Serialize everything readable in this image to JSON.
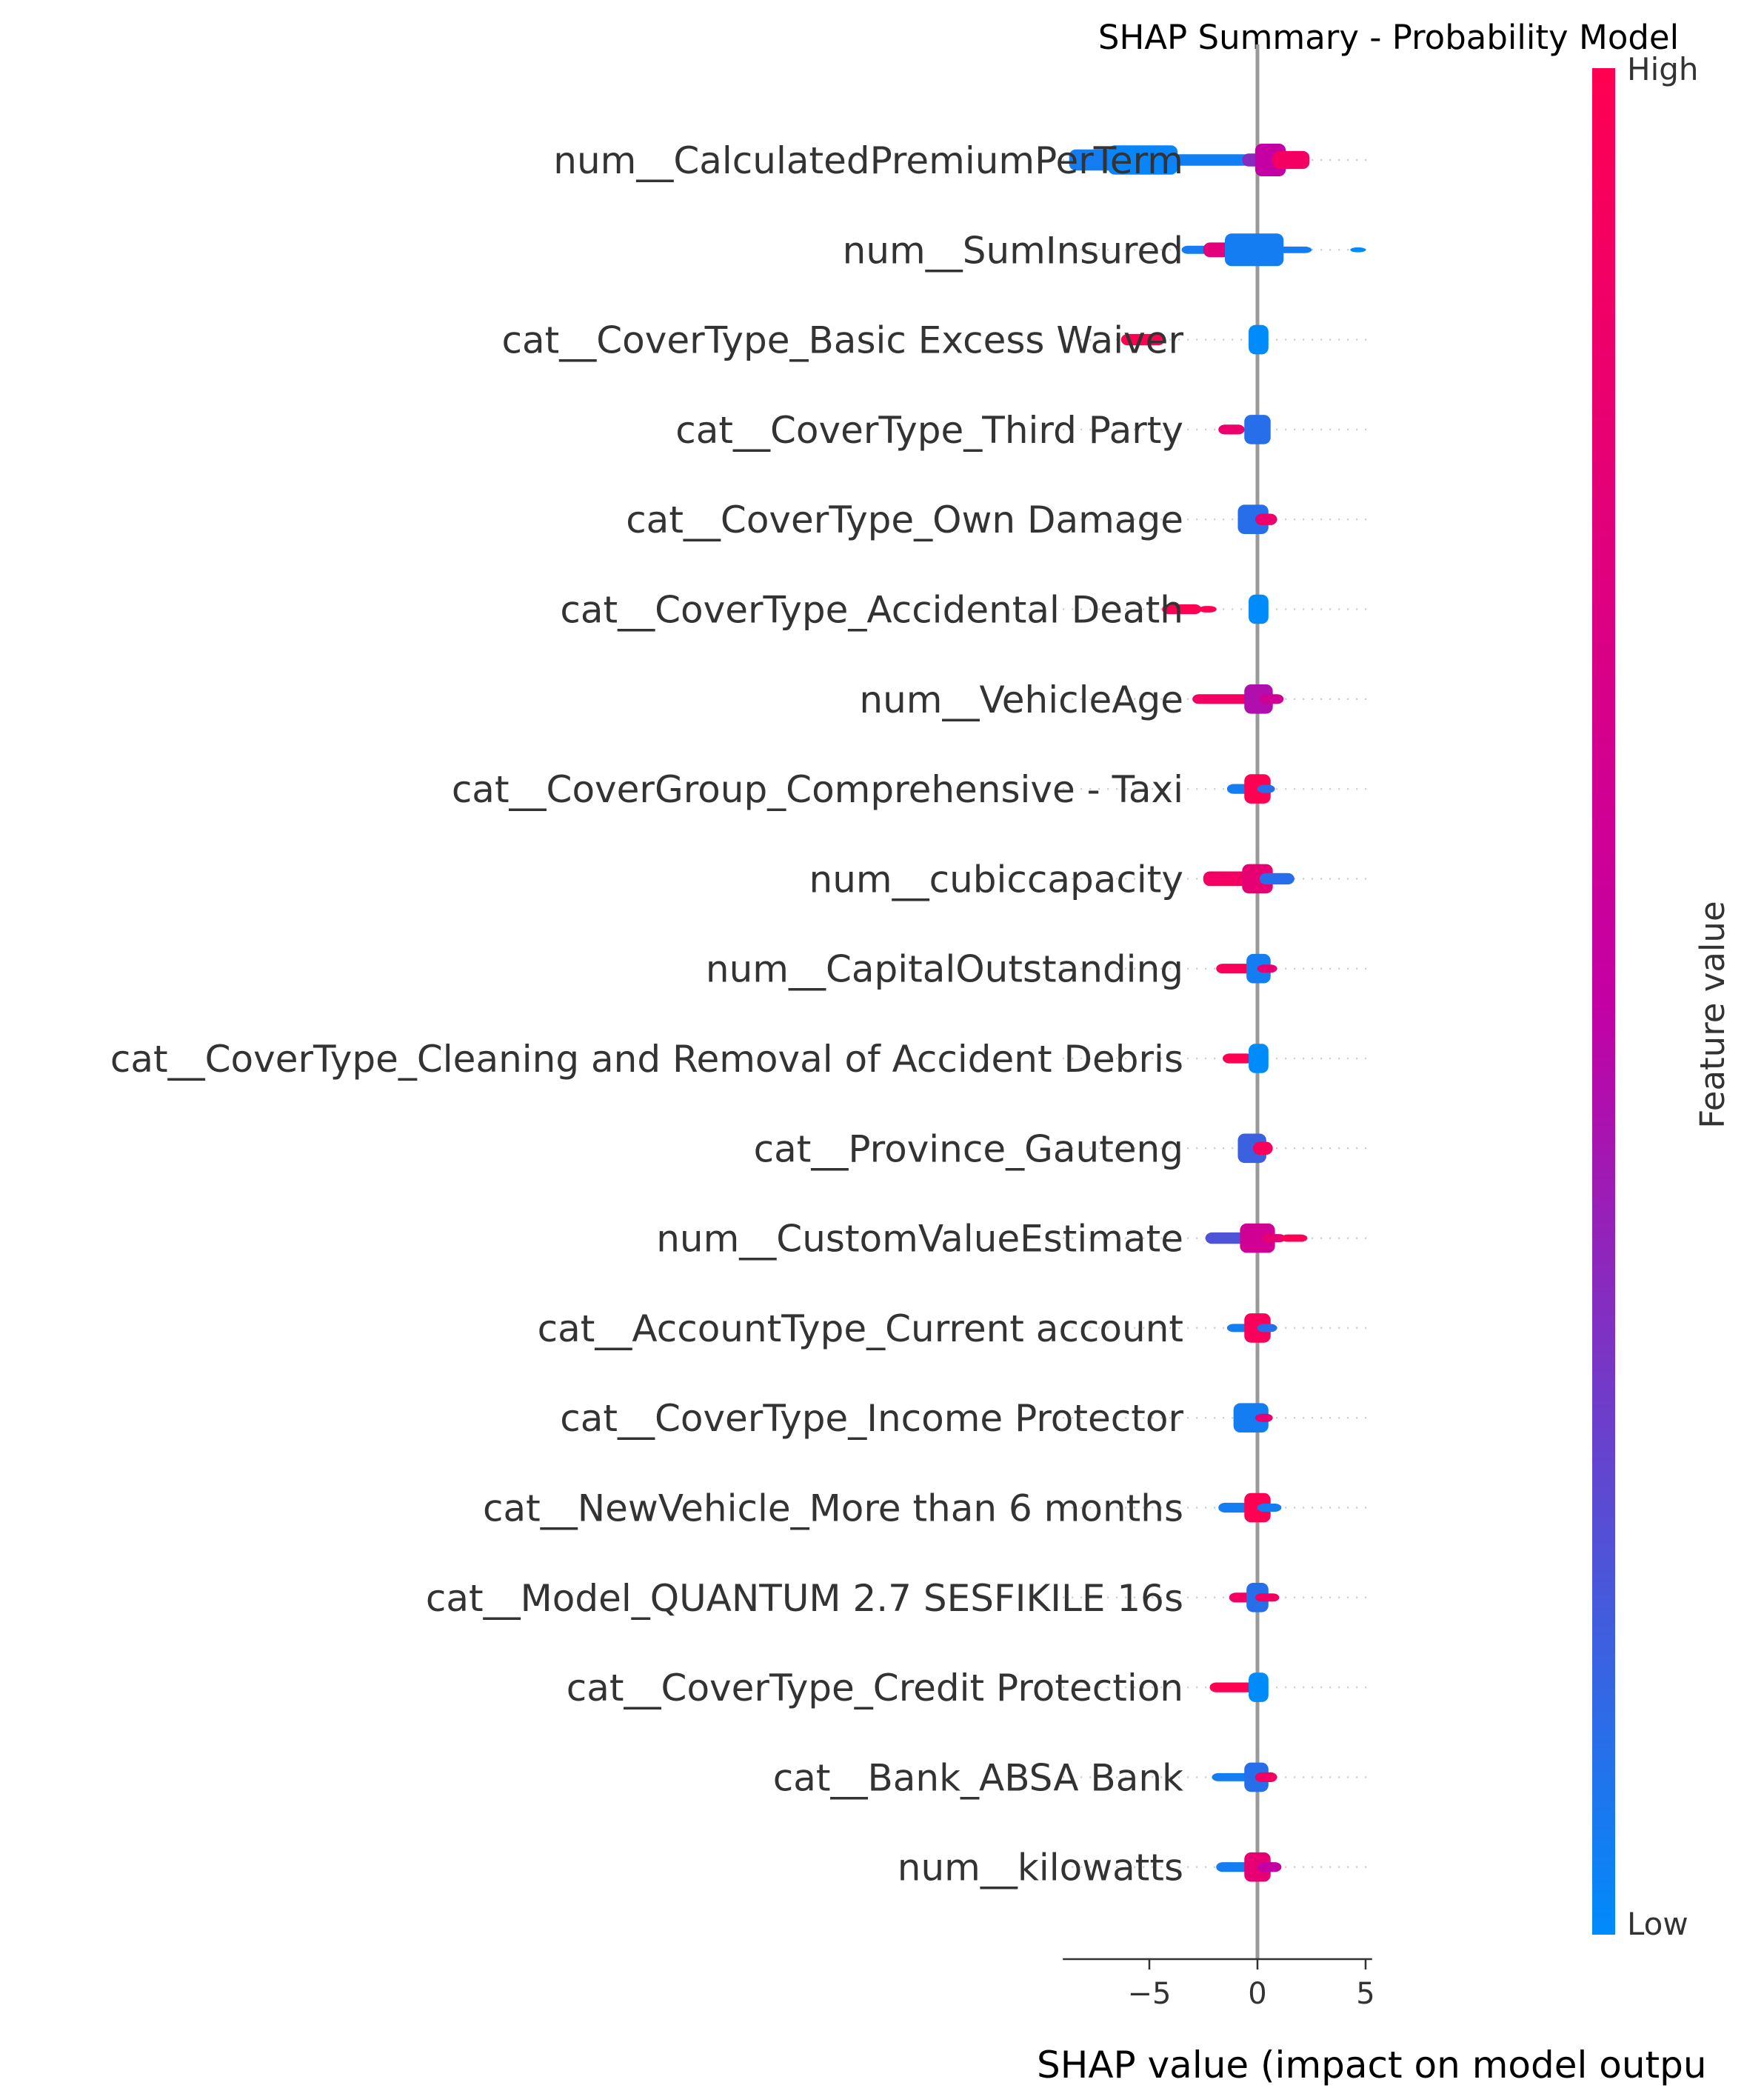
{
  "chart_data": {
    "type": "scatter",
    "subtype": "shap-beeswarm",
    "title": "SHAP Summary - Probability Model",
    "xlabel": "SHAP value (impact on model outpu",
    "xlim": [
      -9,
      5.3
    ],
    "xticks": [
      -5,
      0,
      5
    ],
    "xtick_labels": [
      "−5",
      "0",
      "5"
    ],
    "zero_line": true,
    "colorbar": {
      "label": "Feature value",
      "high_label": "High",
      "low_label": "Low",
      "low_color": "#008bfb",
      "mid_color": "#c400a4",
      "high_color": "#ff0052"
    },
    "features": [
      {
        "name": "num__CalculatedPremiumPerTerm",
        "segments": [
          {
            "from": -8.4,
            "to": -6.6,
            "color": 0.05,
            "width": 2.6
          },
          {
            "from": -6.6,
            "to": -4.0,
            "color": 0.02,
            "width": 3.6
          },
          {
            "from": -4.0,
            "to": -0.4,
            "color": 0.04,
            "width": 1.4
          },
          {
            "from": -0.4,
            "to": 0.2,
            "color": 0.35,
            "width": 1.6
          },
          {
            "from": 0.2,
            "to": 1.0,
            "color": 0.5,
            "width": 4.0
          },
          {
            "from": 1.0,
            "to": 2.1,
            "color": 0.9,
            "width": 2.2
          }
        ]
      },
      {
        "name": "num__SumInsured",
        "segments": [
          {
            "from": -3.2,
            "to": -2.2,
            "color": 0.05,
            "width": 1.0
          },
          {
            "from": -2.2,
            "to": -1.2,
            "color": 0.75,
            "width": 1.8
          },
          {
            "from": -1.2,
            "to": 0.9,
            "color": 0.05,
            "width": 4.0
          },
          {
            "from": 0.9,
            "to": 2.2,
            "color": 0.05,
            "width": 0.8
          },
          {
            "from": 4.6,
            "to": 4.7,
            "color": 0.0,
            "width": 0.6
          }
        ]
      },
      {
        "name": "cat__CoverType_Basic Excess Waiver",
        "segments": [
          {
            "from": -6.0,
            "to": -4.6,
            "color": 1.0,
            "width": 1.4
          },
          {
            "from": -0.1,
            "to": 0.2,
            "color": 0.0,
            "width": 3.6
          }
        ]
      },
      {
        "name": "cat__CoverType_Third Party",
        "segments": [
          {
            "from": -1.5,
            "to": -0.9,
            "color": 0.85,
            "width": 1.2
          },
          {
            "from": -0.3,
            "to": 0.3,
            "color": 0.1,
            "width": 3.6
          }
        ]
      },
      {
        "name": "cat__CoverType_Own Damage",
        "segments": [
          {
            "from": -0.6,
            "to": 0.2,
            "color": 0.1,
            "width": 3.6
          },
          {
            "from": 0.2,
            "to": 0.6,
            "color": 0.85,
            "width": 1.4
          }
        ]
      },
      {
        "name": "cat__CoverType_Accidental Death",
        "segments": [
          {
            "from": -4.1,
            "to": -2.9,
            "color": 1.0,
            "width": 1.2
          },
          {
            "from": -2.4,
            "to": -2.2,
            "color": 1.0,
            "width": 0.8
          },
          {
            "from": -0.1,
            "to": 0.2,
            "color": 0.0,
            "width": 3.6
          }
        ]
      },
      {
        "name": "num__VehicleAge",
        "segments": [
          {
            "from": -2.7,
            "to": -0.3,
            "color": 0.9,
            "width": 1.2
          },
          {
            "from": -0.3,
            "to": 0.4,
            "color": 0.45,
            "width": 3.6
          },
          {
            "from": 0.4,
            "to": 0.9,
            "color": 0.6,
            "width": 1.2
          }
        ]
      },
      {
        "name": "cat__CoverGroup_Comprehensive - Taxi",
        "segments": [
          {
            "from": -1.1,
            "to": -0.4,
            "color": 0.05,
            "width": 1.2
          },
          {
            "from": -0.3,
            "to": 0.3,
            "color": 1.0,
            "width": 3.6
          },
          {
            "from": 0.3,
            "to": 0.5,
            "color": 0.1,
            "width": 1.0
          }
        ]
      },
      {
        "name": "num__cubiccapacity",
        "segments": [
          {
            "from": -2.2,
            "to": -0.4,
            "color": 0.9,
            "width": 1.8
          },
          {
            "from": -0.4,
            "to": 0.4,
            "color": 0.8,
            "width": 3.6
          },
          {
            "from": 0.4,
            "to": 1.4,
            "color": 0.1,
            "width": 1.4
          }
        ]
      },
      {
        "name": "num__CapitalOutstanding",
        "segments": [
          {
            "from": -1.6,
            "to": -0.2,
            "color": 0.95,
            "width": 1.2
          },
          {
            "from": -0.2,
            "to": 0.3,
            "color": 0.05,
            "width": 3.6
          },
          {
            "from": 0.3,
            "to": 0.6,
            "color": 0.8,
            "width": 1.0
          }
        ]
      },
      {
        "name": "cat__CoverType_Cleaning and Removal of Accident Debris",
        "segments": [
          {
            "from": -1.3,
            "to": -0.5,
            "color": 1.0,
            "width": 1.2
          },
          {
            "from": -0.1,
            "to": 0.2,
            "color": 0.0,
            "width": 3.6
          }
        ]
      },
      {
        "name": "cat__Province_Gauteng",
        "segments": [
          {
            "from": -0.6,
            "to": 0.1,
            "color": 0.15,
            "width": 3.6
          },
          {
            "from": 0.1,
            "to": 0.4,
            "color": 0.95,
            "width": 1.6
          }
        ]
      },
      {
        "name": "num__CustomValueEstimate",
        "segments": [
          {
            "from": -2.1,
            "to": -0.5,
            "color": 0.2,
            "width": 1.4
          },
          {
            "from": -0.5,
            "to": 0.5,
            "color": 0.6,
            "width": 3.6
          },
          {
            "from": 0.5,
            "to": 1.0,
            "color": 0.8,
            "width": 1.0
          },
          {
            "from": 1.4,
            "to": 2.0,
            "color": 1.0,
            "width": 0.9
          }
        ]
      },
      {
        "name": "cat__AccountType_Current account",
        "segments": [
          {
            "from": -1.1,
            "to": -0.4,
            "color": 0.05,
            "width": 1.0
          },
          {
            "from": -0.3,
            "to": 0.3,
            "color": 0.95,
            "width": 3.6
          },
          {
            "from": 0.3,
            "to": 0.6,
            "color": 0.1,
            "width": 1.0
          }
        ]
      },
      {
        "name": "cat__CoverType_Income Protector",
        "segments": [
          {
            "from": -0.8,
            "to": 0.2,
            "color": 0.05,
            "width": 3.6
          },
          {
            "from": 0.2,
            "to": 0.4,
            "color": 0.8,
            "width": 1.0
          }
        ]
      },
      {
        "name": "cat__NewVehicle_More than 6 months",
        "segments": [
          {
            "from": -1.5,
            "to": -0.3,
            "color": 0.05,
            "width": 1.2
          },
          {
            "from": -0.3,
            "to": 0.3,
            "color": 1.0,
            "width": 3.6
          },
          {
            "from": 0.3,
            "to": 0.8,
            "color": 0.05,
            "width": 1.0
          }
        ]
      },
      {
        "name": "cat__Model_QUANTUM 2.7 SESFIKILE 16s",
        "segments": [
          {
            "from": -1.0,
            "to": -0.2,
            "color": 0.9,
            "width": 1.2
          },
          {
            "from": -0.2,
            "to": 0.2,
            "color": 0.1,
            "width": 3.6
          },
          {
            "from": 0.2,
            "to": 0.7,
            "color": 0.9,
            "width": 1.0
          }
        ]
      },
      {
        "name": "cat__CoverType_Credit Protection",
        "segments": [
          {
            "from": -1.9,
            "to": -0.4,
            "color": 1.0,
            "width": 1.2
          },
          {
            "from": -0.1,
            "to": 0.2,
            "color": 0.0,
            "width": 3.6
          }
        ]
      },
      {
        "name": "cat__Bank_ABSA Bank",
        "segments": [
          {
            "from": -1.8,
            "to": -0.4,
            "color": 0.05,
            "width": 1.0
          },
          {
            "from": -0.3,
            "to": 0.2,
            "color": 0.1,
            "width": 3.6
          },
          {
            "from": 0.2,
            "to": 0.6,
            "color": 0.9,
            "width": 1.2
          }
        ]
      },
      {
        "name": "num__kilowatts",
        "segments": [
          {
            "from": -1.6,
            "to": -0.3,
            "color": 0.05,
            "width": 1.2
          },
          {
            "from": -0.3,
            "to": 0.3,
            "color": 0.8,
            "width": 3.6
          },
          {
            "from": 0.3,
            "to": 0.8,
            "color": 0.5,
            "width": 1.2
          }
        ]
      }
    ]
  }
}
